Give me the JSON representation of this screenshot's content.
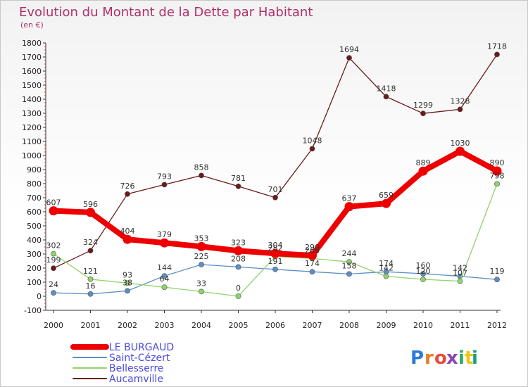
{
  "chart_data": {
    "type": "line",
    "title": "Evolution du Montant de la Dette par Habitant",
    "subtitle": "(en €)",
    "xlabel": "",
    "ylabel": "",
    "x": [
      "2000",
      "2001",
      "2002",
      "2003",
      "2004",
      "2005",
      "2006",
      "2007",
      "2008",
      "2009",
      "2010",
      "2011",
      "2012"
    ],
    "ylim": [
      -100,
      1800
    ],
    "yticks": [
      "-100",
      "0",
      "100",
      "200",
      "300",
      "400",
      "500",
      "600",
      "700",
      "800",
      "900",
      "1000",
      "1100",
      "1200",
      "1300",
      "1400",
      "1500",
      "1600",
      "1700",
      "1800"
    ],
    "grid": false,
    "legend_position": "bottom-left",
    "series": [
      {
        "name": "Aucamville",
        "color": "#6b1a1a",
        "values": [
          199,
          324,
          726,
          793,
          858,
          781,
          701,
          1048,
          1694,
          1418,
          1299,
          1328,
          1718
        ],
        "labels": [
          "199",
          "324",
          "726",
          "793",
          "858",
          "781",
          "701",
          "1048",
          "1694",
          "1418",
          "1299",
          "1328",
          "1718"
        ]
      },
      {
        "name": "Saint-Cézert",
        "color": "#5b8fc6",
        "values": [
          24,
          16,
          38,
          144,
          225,
          208,
          191,
          174,
          158,
          174,
          160,
          142,
          119
        ],
        "labels": [
          "24",
          "16",
          "38",
          "144",
          "225",
          "208",
          "191",
          "174",
          "158",
          "174",
          "160",
          "142",
          "119"
        ]
      },
      {
        "name": "Bellesserre",
        "color": "#8fd36a",
        "values": [
          302,
          121,
          93,
          64,
          33,
          0,
          282,
          268,
          244,
          142,
          120,
          107,
          798
        ],
        "labels": [
          "302",
          "121",
          "93",
          "64",
          "33",
          "0",
          "282",
          "268",
          "244",
          "142",
          "120",
          "107",
          "798"
        ]
      },
      {
        "name": "LE BURGAUD",
        "color": "#ee0000",
        "values": [
          607,
          596,
          404,
          379,
          353,
          323,
          304,
          290,
          637,
          659,
          889,
          1030,
          890
        ],
        "labels": [
          "607",
          "596",
          "404",
          "379",
          "353",
          "323",
          "304",
          "290",
          "637",
          "659",
          "889",
          "1030",
          "890"
        ]
      }
    ],
    "legend": [
      {
        "name": "LE BURGAUD",
        "color": "#ee0000",
        "text_color": "#4a4ae0"
      },
      {
        "name": "Saint-Cézert",
        "color": "#5b8fc6",
        "text_color": "#4a4ae0"
      },
      {
        "name": "Bellesserre",
        "color": "#8fd36a",
        "text_color": "#4a4ae0"
      },
      {
        "name": "Aucamville",
        "color": "#6b1a1a",
        "text_color": "#4a4ae0"
      }
    ],
    "logo": "Proxiti"
  }
}
